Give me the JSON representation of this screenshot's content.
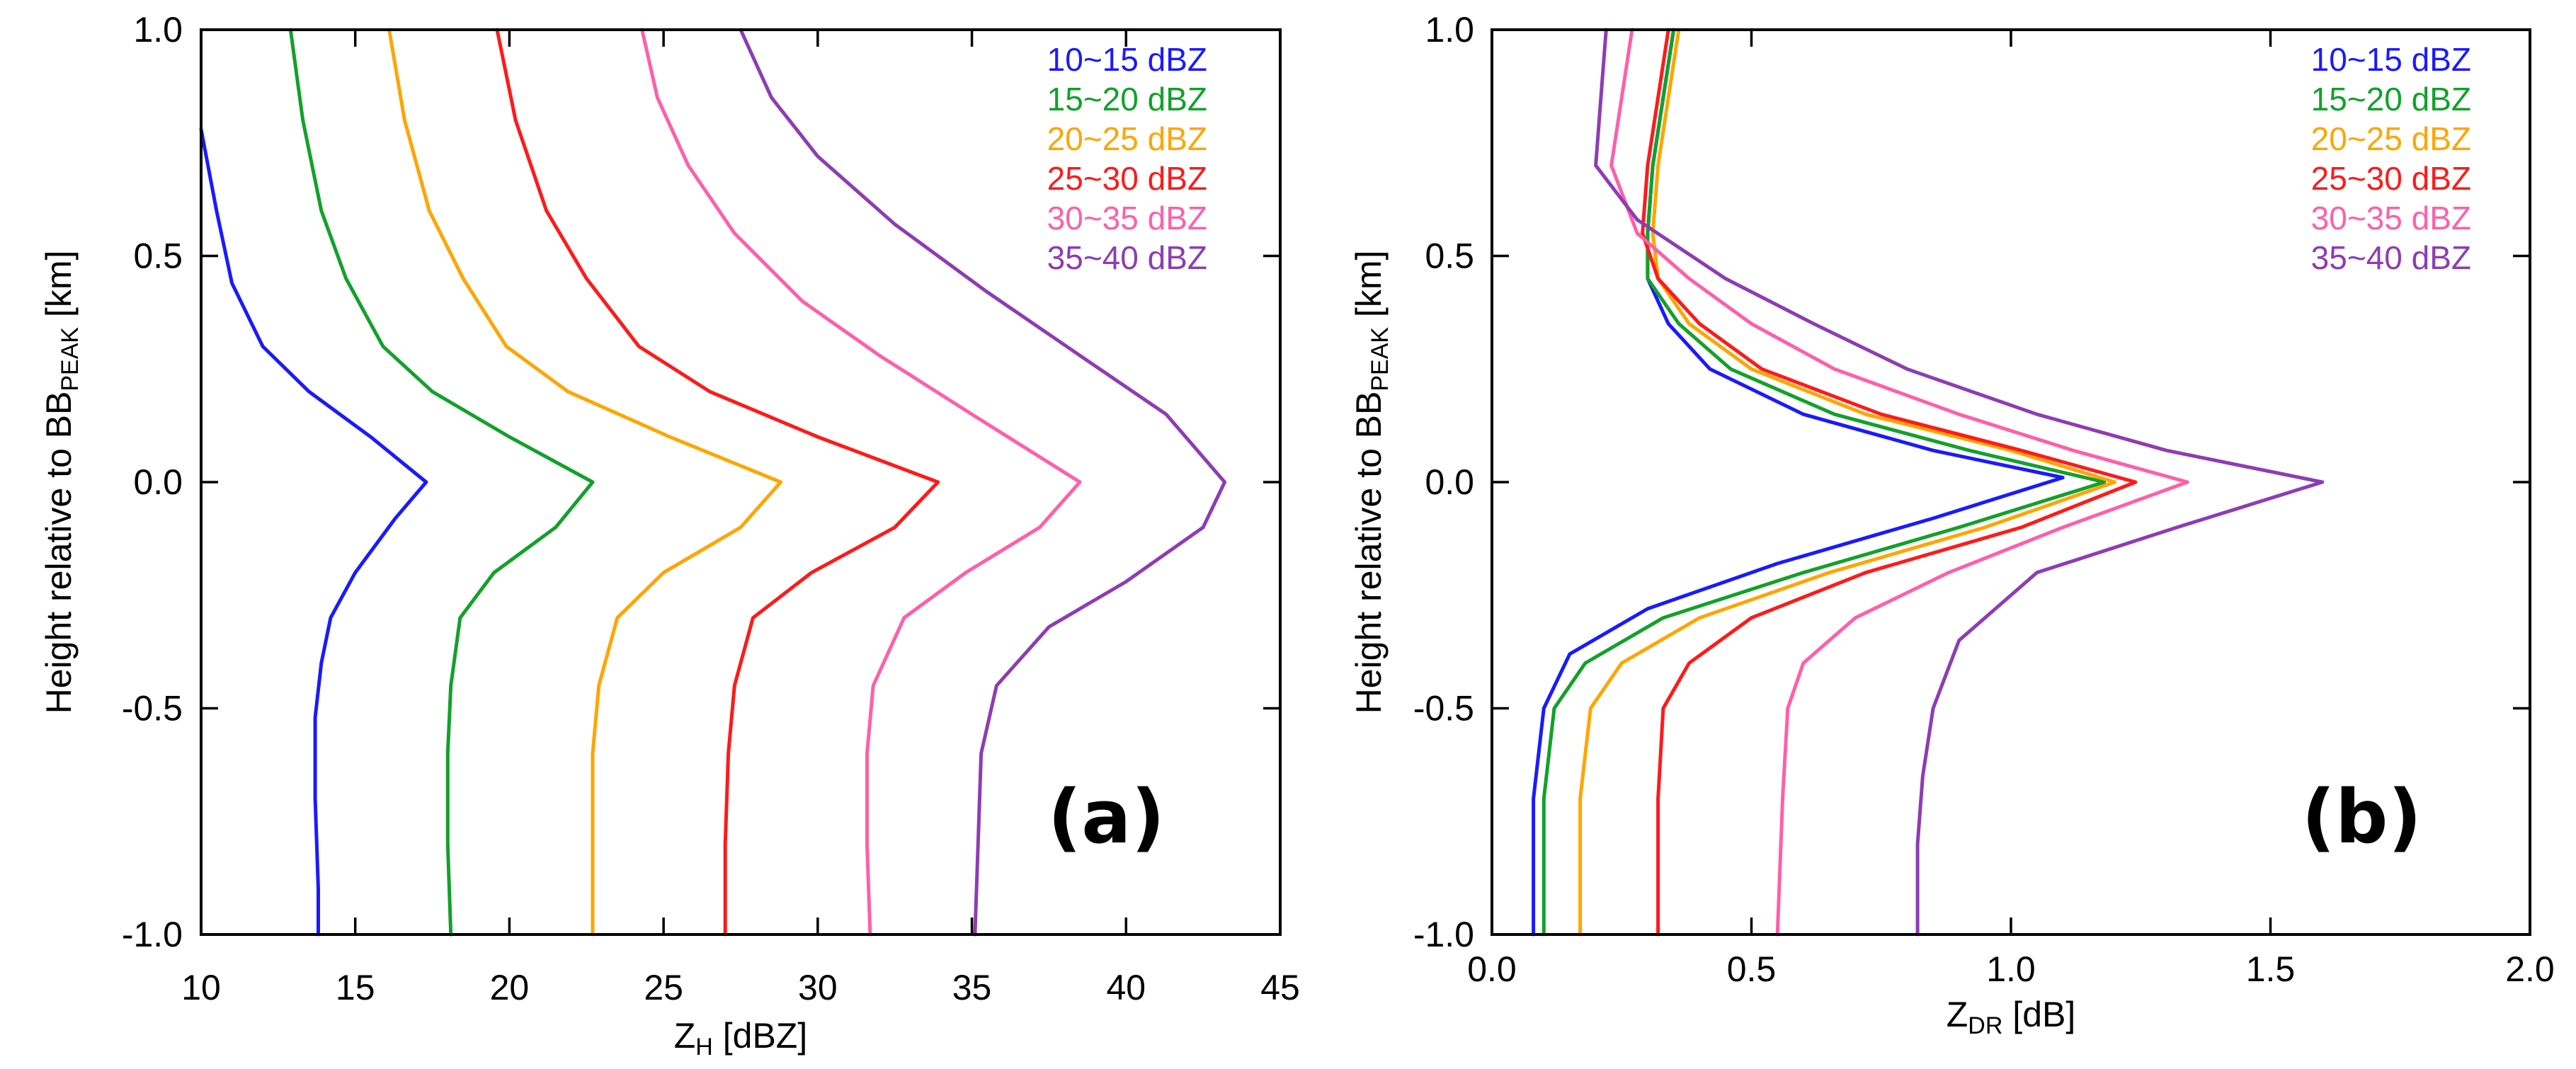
{
  "colors": {
    "10~15 dBZ": "#1a1aff",
    "15~20 dBZ": "#12a12a",
    "20~25 dBZ": "#ffa500",
    "25~30 dBZ": "#ff1a1a",
    "30~35 dBZ": "#ff5faa",
    "35~40 dBZ": "#8e3cb4"
  },
  "chart_data": [
    {
      "type": "line",
      "panel_label": "(a)",
      "title": "",
      "xlabel_main": "Z",
      "xlabel_sub": "H",
      "xlabel_unit": " [dBZ]",
      "ylabel_main": "Height relative to BB",
      "ylabel_sub": "PEAK",
      "ylabel_unit": " [km]",
      "xlim": [
        10,
        45
      ],
      "ylim": [
        -1.0,
        1.0
      ],
      "xticks": [
        10,
        15,
        20,
        25,
        30,
        35,
        40,
        45
      ],
      "xtick_labels": [
        "10",
        "15",
        "20",
        "25",
        "30",
        "35",
        "40",
        "45"
      ],
      "yticks": [
        -1.0,
        -0.5,
        0.0,
        0.5,
        1.0
      ],
      "ytick_labels": [
        "-1.0",
        "-0.5",
        "0.0",
        "0.5",
        "1.0"
      ],
      "legend_position": "top-right",
      "legend": [
        "10~15 dBZ",
        "15~20 dBZ",
        "20~25 dBZ",
        "25~30 dBZ",
        "30~35 dBZ",
        "35~40 dBZ"
      ],
      "series": [
        {
          "name": "10~15 dBZ",
          "points": [
            [
              10.0,
              0.78
            ],
            [
              10.5,
              0.6
            ],
            [
              11.0,
              0.44
            ],
            [
              12.0,
              0.3
            ],
            [
              13.5,
              0.2
            ],
            [
              15.5,
              0.1
            ],
            [
              17.3,
              0.0
            ],
            [
              16.3,
              -0.08
            ],
            [
              15.0,
              -0.2
            ],
            [
              14.2,
              -0.3
            ],
            [
              13.9,
              -0.4
            ],
            [
              13.7,
              -0.52
            ],
            [
              13.7,
              -0.7
            ],
            [
              13.8,
              -0.9
            ],
            [
              13.8,
              -1.0
            ]
          ]
        },
        {
          "name": "15~20 dBZ",
          "points": [
            [
              12.9,
              1.0
            ],
            [
              13.3,
              0.8
            ],
            [
              13.9,
              0.6
            ],
            [
              14.7,
              0.45
            ],
            [
              15.9,
              0.3
            ],
            [
              17.5,
              0.2
            ],
            [
              20.0,
              0.1
            ],
            [
              22.7,
              0.0
            ],
            [
              21.5,
              -0.1
            ],
            [
              19.5,
              -0.2
            ],
            [
              18.4,
              -0.3
            ],
            [
              18.1,
              -0.45
            ],
            [
              18.0,
              -0.6
            ],
            [
              18.0,
              -0.8
            ],
            [
              18.1,
              -1.0
            ]
          ]
        },
        {
          "name": "20~25 dBZ",
          "points": [
            [
              16.1,
              1.0
            ],
            [
              16.6,
              0.8
            ],
            [
              17.4,
              0.6
            ],
            [
              18.5,
              0.45
            ],
            [
              19.9,
              0.3
            ],
            [
              21.9,
              0.2
            ],
            [
              25.2,
              0.1
            ],
            [
              28.8,
              0.0
            ],
            [
              27.5,
              -0.1
            ],
            [
              25.0,
              -0.2
            ],
            [
              23.5,
              -0.3
            ],
            [
              22.9,
              -0.45
            ],
            [
              22.7,
              -0.6
            ],
            [
              22.7,
              -0.8
            ],
            [
              22.7,
              -1.0
            ]
          ]
        },
        {
          "name": "25~30 dBZ",
          "points": [
            [
              19.6,
              1.0
            ],
            [
              20.2,
              0.8
            ],
            [
              21.2,
              0.6
            ],
            [
              22.5,
              0.45
            ],
            [
              24.2,
              0.3
            ],
            [
              26.5,
              0.2
            ],
            [
              30.0,
              0.1
            ],
            [
              33.9,
              0.0
            ],
            [
              32.5,
              -0.1
            ],
            [
              29.8,
              -0.2
            ],
            [
              27.9,
              -0.3
            ],
            [
              27.3,
              -0.45
            ],
            [
              27.1,
              -0.6
            ],
            [
              27.0,
              -0.8
            ],
            [
              27.0,
              -1.0
            ]
          ]
        },
        {
          "name": "30~35 dBZ",
          "points": [
            [
              24.3,
              1.0
            ],
            [
              24.8,
              0.85
            ],
            [
              25.8,
              0.7
            ],
            [
              27.3,
              0.55
            ],
            [
              29.5,
              0.4
            ],
            [
              32.0,
              0.28
            ],
            [
              35.0,
              0.15
            ],
            [
              38.5,
              0.0
            ],
            [
              37.2,
              -0.1
            ],
            [
              34.8,
              -0.2
            ],
            [
              32.8,
              -0.3
            ],
            [
              31.8,
              -0.45
            ],
            [
              31.6,
              -0.6
            ],
            [
              31.6,
              -0.8
            ],
            [
              31.7,
              -1.0
            ]
          ]
        },
        {
          "name": "35~40 dBZ",
          "points": [
            [
              27.5,
              1.0
            ],
            [
              28.5,
              0.85
            ],
            [
              30.0,
              0.72
            ],
            [
              32.5,
              0.57
            ],
            [
              35.5,
              0.42
            ],
            [
              38.5,
              0.28
            ],
            [
              41.3,
              0.15
            ],
            [
              43.2,
              0.0
            ],
            [
              42.5,
              -0.1
            ],
            [
              40.0,
              -0.22
            ],
            [
              37.5,
              -0.32
            ],
            [
              35.8,
              -0.45
            ],
            [
              35.3,
              -0.6
            ],
            [
              35.2,
              -0.8
            ],
            [
              35.1,
              -1.0
            ]
          ]
        }
      ]
    },
    {
      "type": "line",
      "panel_label": "(b)",
      "title": "",
      "xlabel_main": "Z",
      "xlabel_sub": "DR",
      "xlabel_unit": " [dB]",
      "ylabel_main": "Height relative to BB",
      "ylabel_sub": "PEAK",
      "ylabel_unit": " [km]",
      "xlim": [
        0.0,
        2.0
      ],
      "ylim": [
        -1.0,
        1.0
      ],
      "xticks": [
        0.0,
        0.5,
        1.0,
        1.5,
        2.0
      ],
      "xtick_labels": [
        "0.0",
        "0.5",
        "1.0",
        "1.5",
        "2.0"
      ],
      "yticks": [
        -1.0,
        -0.5,
        0.0,
        0.5,
        1.0
      ],
      "ytick_labels": [
        "-1.0",
        "-0.5",
        "0.0",
        "0.5",
        "1.0"
      ],
      "legend_position": "top-right",
      "legend": [
        "10~15 dBZ",
        "15~20 dBZ",
        "20~25 dBZ",
        "25~30 dBZ",
        "30~35 dBZ",
        "35~40 dBZ"
      ],
      "series": [
        {
          "name": "10~15 dBZ",
          "points": [
            [
              0.35,
              1.0
            ],
            [
              0.33,
              0.85
            ],
            [
              0.31,
              0.7
            ],
            [
              0.3,
              0.55
            ],
            [
              0.3,
              0.45
            ],
            [
              0.34,
              0.35
            ],
            [
              0.42,
              0.25
            ],
            [
              0.6,
              0.15
            ],
            [
              0.85,
              0.07
            ],
            [
              1.1,
              0.01
            ],
            [
              0.85,
              -0.08
            ],
            [
              0.55,
              -0.18
            ],
            [
              0.3,
              -0.28
            ],
            [
              0.15,
              -0.38
            ],
            [
              0.1,
              -0.5
            ],
            [
              0.08,
              -0.7
            ],
            [
              0.08,
              -1.0
            ]
          ]
        },
        {
          "name": "15~20 dBZ",
          "points": [
            [
              0.35,
              1.0
            ],
            [
              0.33,
              0.85
            ],
            [
              0.31,
              0.7
            ],
            [
              0.3,
              0.55
            ],
            [
              0.3,
              0.45
            ],
            [
              0.36,
              0.35
            ],
            [
              0.46,
              0.25
            ],
            [
              0.66,
              0.15
            ],
            [
              0.92,
              0.07
            ],
            [
              1.18,
              0.0
            ],
            [
              0.9,
              -0.1
            ],
            [
              0.6,
              -0.2
            ],
            [
              0.33,
              -0.3
            ],
            [
              0.18,
              -0.4
            ],
            [
              0.12,
              -0.5
            ],
            [
              0.1,
              -0.7
            ],
            [
              0.1,
              -1.0
            ]
          ]
        },
        {
          "name": "20~25 dBZ",
          "points": [
            [
              0.36,
              1.0
            ],
            [
              0.34,
              0.85
            ],
            [
              0.32,
              0.7
            ],
            [
              0.31,
              0.55
            ],
            [
              0.32,
              0.45
            ],
            [
              0.38,
              0.35
            ],
            [
              0.5,
              0.25
            ],
            [
              0.72,
              0.15
            ],
            [
              1.0,
              0.07
            ],
            [
              1.2,
              0.0
            ],
            [
              0.95,
              -0.1
            ],
            [
              0.65,
              -0.2
            ],
            [
              0.4,
              -0.3
            ],
            [
              0.25,
              -0.4
            ],
            [
              0.19,
              -0.5
            ],
            [
              0.17,
              -0.7
            ],
            [
              0.17,
              -1.0
            ]
          ]
        },
        {
          "name": "25~30 dBZ",
          "points": [
            [
              0.34,
              1.0
            ],
            [
              0.32,
              0.85
            ],
            [
              0.3,
              0.7
            ],
            [
              0.29,
              0.55
            ],
            [
              0.32,
              0.45
            ],
            [
              0.4,
              0.35
            ],
            [
              0.52,
              0.25
            ],
            [
              0.75,
              0.15
            ],
            [
              1.02,
              0.07
            ],
            [
              1.24,
              0.0
            ],
            [
              1.02,
              -0.1
            ],
            [
              0.72,
              -0.2
            ],
            [
              0.5,
              -0.3
            ],
            [
              0.38,
              -0.4
            ],
            [
              0.33,
              -0.5
            ],
            [
              0.32,
              -0.7
            ],
            [
              0.32,
              -1.0
            ]
          ]
        },
        {
          "name": "30~35 dBZ",
          "points": [
            [
              0.27,
              1.0
            ],
            [
              0.25,
              0.85
            ],
            [
              0.23,
              0.7
            ],
            [
              0.28,
              0.55
            ],
            [
              0.38,
              0.45
            ],
            [
              0.5,
              0.35
            ],
            [
              0.66,
              0.25
            ],
            [
              0.9,
              0.15
            ],
            [
              1.12,
              0.07
            ],
            [
              1.34,
              0.0
            ],
            [
              1.1,
              -0.1
            ],
            [
              0.88,
              -0.2
            ],
            [
              0.7,
              -0.3
            ],
            [
              0.6,
              -0.4
            ],
            [
              0.57,
              -0.5
            ],
            [
              0.56,
              -0.7
            ],
            [
              0.55,
              -1.0
            ]
          ]
        },
        {
          "name": "35~40 dBZ",
          "points": [
            [
              0.22,
              1.0
            ],
            [
              0.21,
              0.85
            ],
            [
              0.2,
              0.7
            ],
            [
              0.28,
              0.58
            ],
            [
              0.45,
              0.45
            ],
            [
              0.62,
              0.35
            ],
            [
              0.8,
              0.25
            ],
            [
              1.05,
              0.15
            ],
            [
              1.3,
              0.07
            ],
            [
              1.6,
              0.0
            ],
            [
              1.32,
              -0.1
            ],
            [
              1.05,
              -0.2
            ],
            [
              0.9,
              -0.35
            ],
            [
              0.85,
              -0.5
            ],
            [
              0.83,
              -0.65
            ],
            [
              0.82,
              -0.8
            ],
            [
              0.82,
              -1.0
            ]
          ]
        }
      ]
    }
  ]
}
